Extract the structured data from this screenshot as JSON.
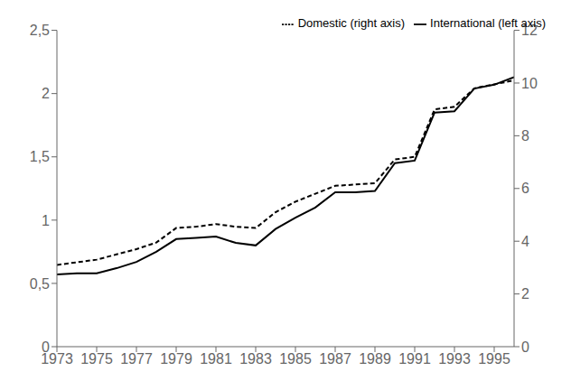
{
  "chart_data": {
    "type": "line",
    "x": [
      1973,
      1974,
      1975,
      1976,
      1977,
      1978,
      1979,
      1980,
      1981,
      1982,
      1983,
      1984,
      1985,
      1986,
      1987,
      1988,
      1989,
      1990,
      1991,
      1992,
      1993,
      1994,
      1995,
      1996
    ],
    "xlim": [
      1973,
      1996
    ],
    "xticks": [
      1973,
      1975,
      1977,
      1979,
      1981,
      1983,
      1985,
      1987,
      1989,
      1991,
      1993,
      1995
    ],
    "ylim": [
      0,
      2.5
    ],
    "yticks": [
      0,
      {
        "value": 0.5,
        "label": "0,5"
      },
      1,
      {
        "value": 1.5,
        "label": "1,5"
      },
      2,
      {
        "value": 2.5,
        "label": "2,5"
      }
    ],
    "y2lim": [
      0,
      12
    ],
    "y2ticks": [
      0,
      2,
      4,
      6,
      8,
      10,
      12
    ],
    "grid": false,
    "legend": "upper right",
    "series": [
      {
        "name": "International (left axis)",
        "color": "#000000",
        "line_style": "solid",
        "values": [
          0.57,
          0.58,
          0.58,
          0.62,
          0.67,
          0.75,
          0.85,
          0.86,
          0.87,
          0.82,
          0.8,
          0.93,
          1.02,
          1.1,
          1.22,
          1.22,
          1.23,
          1.45,
          1.47,
          1.85,
          1.86,
          2.04,
          2.07,
          2.13
        ]
      },
      {
        "name": "Domestic (right axis)",
        "color": "#000000",
        "line_style": "dashed",
        "axis": "y2",
        "values": [
          3.1,
          3.2,
          3.3,
          3.5,
          3.7,
          3.95,
          4.5,
          4.55,
          4.65,
          4.55,
          4.5,
          5.1,
          5.5,
          5.8,
          6.1,
          6.15,
          6.2,
          7.1,
          7.2,
          9.0,
          9.1,
          9.8,
          9.95,
          10.1
        ]
      }
    ]
  }
}
